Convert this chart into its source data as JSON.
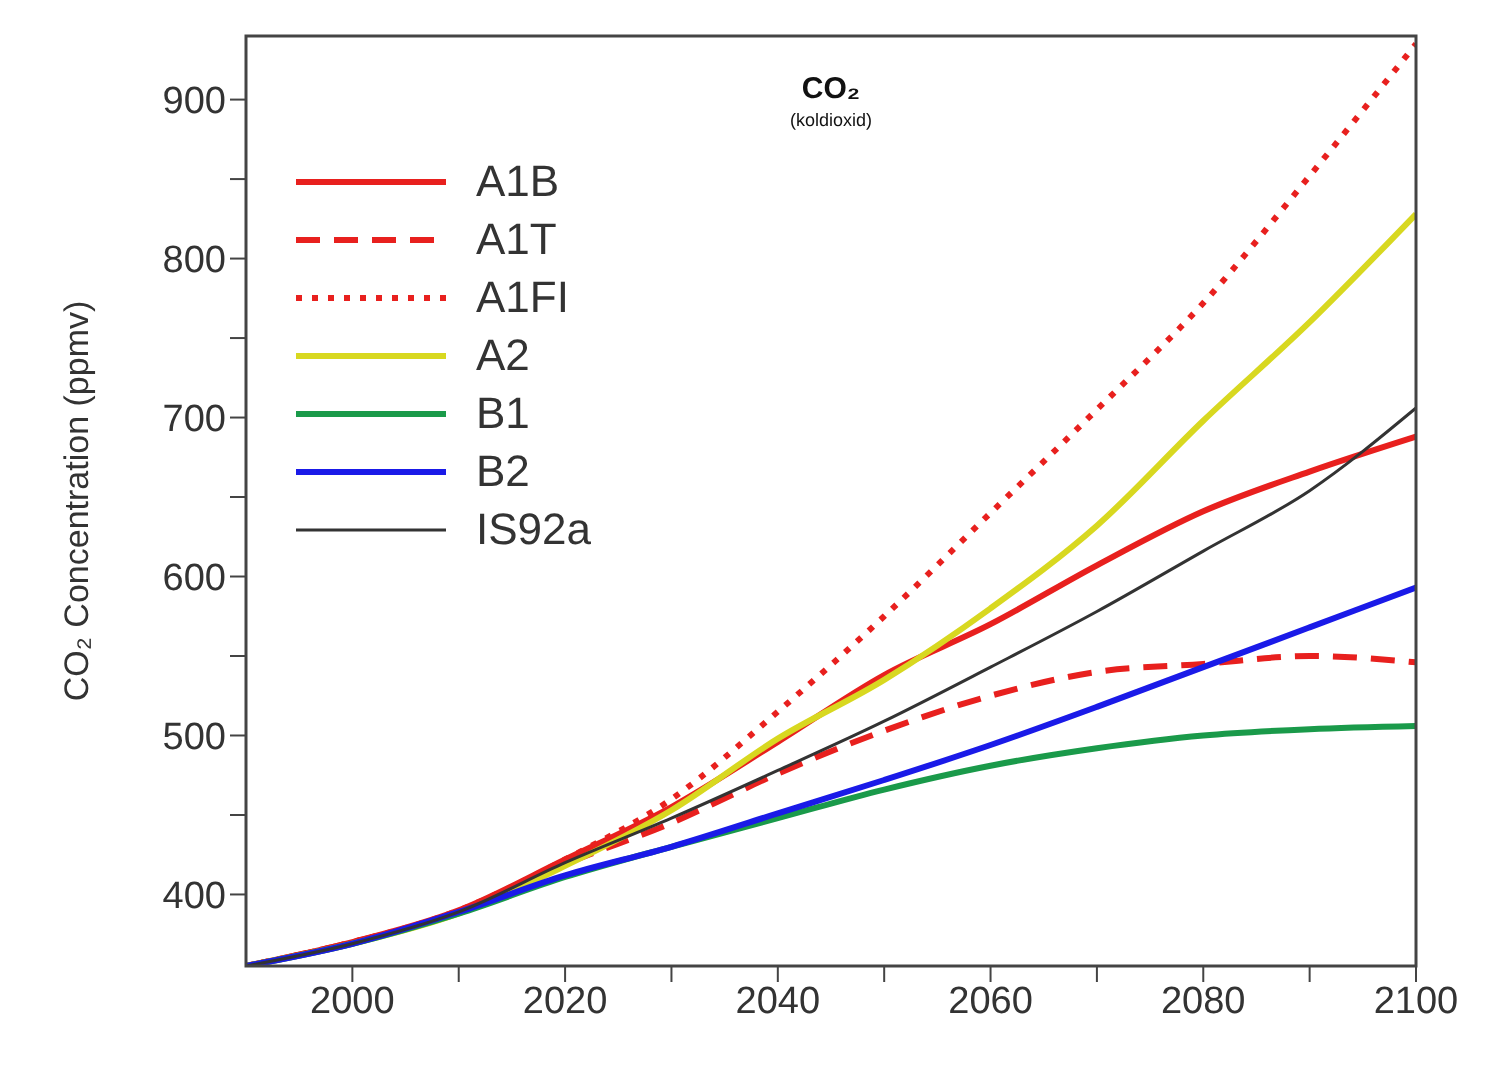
{
  "chart_data": {
    "type": "line",
    "title": "CO₂",
    "subtitle": "(koldioxid)",
    "ylabel": "CO₂ Concentration (ppmv)",
    "x": [
      1990,
      2000,
      2010,
      2020,
      2030,
      2040,
      2050,
      2060,
      2070,
      2080,
      2090,
      2100
    ],
    "series": [
      {
        "name": "A1B",
        "color": "#e8201e",
        "line_style": "solid",
        "values": [
          355,
          370,
          390,
          422,
          455,
          496,
          538,
          570,
          607,
          641,
          666,
          688
        ]
      },
      {
        "name": "A1T",
        "color": "#e8201e",
        "line_style": "dashed",
        "values": [
          355,
          370,
          389,
          419,
          445,
          476,
          503,
          525,
          540,
          545,
          550,
          546
        ]
      },
      {
        "name": "A1FI",
        "color": "#e8201e",
        "line_style": "dotted",
        "values": [
          355,
          370,
          390,
          422,
          460,
          515,
          575,
          640,
          705,
          772,
          852,
          935
        ]
      },
      {
        "name": "A2",
        "color": "#d8d820",
        "line_style": "solid",
        "values": [
          355,
          369,
          388,
          418,
          453,
          498,
          535,
          580,
          632,
          698,
          760,
          828
        ]
      },
      {
        "name": "B1",
        "color": "#1a9a4a",
        "line_style": "solid",
        "values": [
          355,
          369,
          388,
          411,
          430,
          448,
          466,
          481,
          492,
          500,
          504,
          506
        ]
      },
      {
        "name": "B2",
        "color": "#1a1ae8",
        "line_style": "solid",
        "values": [
          355,
          369,
          389,
          412,
          430,
          451,
          472,
          494,
          518,
          543,
          568,
          593
        ]
      },
      {
        "name": "IS92a",
        "color": "#333333",
        "line_style": "solid",
        "values": [
          355,
          369,
          389,
          420,
          448,
          478,
          509,
          543,
          578,
          616,
          654,
          706
        ]
      }
    ],
    "xlim": [
      1990,
      2100
    ],
    "xticks": [
      2000,
      {
        "value": 2010,
        "label": null
      },
      2020,
      {
        "value": 2030,
        "label": null
      },
      2040,
      {
        "value": 2050,
        "label": null
      },
      2060,
      {
        "value": 2070,
        "label": null
      },
      2080,
      {
        "value": 2090,
        "label": null
      },
      2100
    ],
    "ylim": [
      355,
      940
    ],
    "yticks": [
      400,
      {
        "value": 450,
        "label": null
      },
      500,
      {
        "value": 550,
        "label": null
      },
      600,
      {
        "value": 650,
        "label": null
      },
      700,
      {
        "value": 750,
        "label": null
      },
      800,
      {
        "value": 850,
        "label": null
      },
      900
    ],
    "grid": false,
    "legend": "top left",
    "marker": "none"
  }
}
